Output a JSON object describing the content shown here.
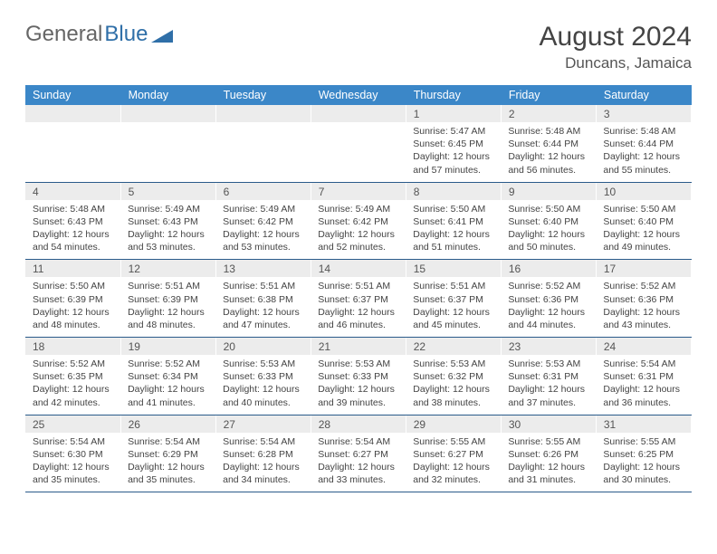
{
  "logo": {
    "text1": "General",
    "text2": "Blue"
  },
  "title": "August 2024",
  "location": "Duncans, Jamaica",
  "colors": {
    "header_bg": "#3b87c8",
    "daynum_bg": "#ececec",
    "sep_border": "#2a5b8a",
    "logo_blue": "#2f6fa8"
  },
  "day_headers": [
    "Sunday",
    "Monday",
    "Tuesday",
    "Wednesday",
    "Thursday",
    "Friday",
    "Saturday"
  ],
  "weeks": [
    [
      null,
      null,
      null,
      null,
      {
        "n": "1",
        "sr": "5:47 AM",
        "ss": "6:45 PM",
        "dl": "12 hours and 57 minutes."
      },
      {
        "n": "2",
        "sr": "5:48 AM",
        "ss": "6:44 PM",
        "dl": "12 hours and 56 minutes."
      },
      {
        "n": "3",
        "sr": "5:48 AM",
        "ss": "6:44 PM",
        "dl": "12 hours and 55 minutes."
      }
    ],
    [
      {
        "n": "4",
        "sr": "5:48 AM",
        "ss": "6:43 PM",
        "dl": "12 hours and 54 minutes."
      },
      {
        "n": "5",
        "sr": "5:49 AM",
        "ss": "6:43 PM",
        "dl": "12 hours and 53 minutes."
      },
      {
        "n": "6",
        "sr": "5:49 AM",
        "ss": "6:42 PM",
        "dl": "12 hours and 53 minutes."
      },
      {
        "n": "7",
        "sr": "5:49 AM",
        "ss": "6:42 PM",
        "dl": "12 hours and 52 minutes."
      },
      {
        "n": "8",
        "sr": "5:50 AM",
        "ss": "6:41 PM",
        "dl": "12 hours and 51 minutes."
      },
      {
        "n": "9",
        "sr": "5:50 AM",
        "ss": "6:40 PM",
        "dl": "12 hours and 50 minutes."
      },
      {
        "n": "10",
        "sr": "5:50 AM",
        "ss": "6:40 PM",
        "dl": "12 hours and 49 minutes."
      }
    ],
    [
      {
        "n": "11",
        "sr": "5:50 AM",
        "ss": "6:39 PM",
        "dl": "12 hours and 48 minutes."
      },
      {
        "n": "12",
        "sr": "5:51 AM",
        "ss": "6:39 PM",
        "dl": "12 hours and 48 minutes."
      },
      {
        "n": "13",
        "sr": "5:51 AM",
        "ss": "6:38 PM",
        "dl": "12 hours and 47 minutes."
      },
      {
        "n": "14",
        "sr": "5:51 AM",
        "ss": "6:37 PM",
        "dl": "12 hours and 46 minutes."
      },
      {
        "n": "15",
        "sr": "5:51 AM",
        "ss": "6:37 PM",
        "dl": "12 hours and 45 minutes."
      },
      {
        "n": "16",
        "sr": "5:52 AM",
        "ss": "6:36 PM",
        "dl": "12 hours and 44 minutes."
      },
      {
        "n": "17",
        "sr": "5:52 AM",
        "ss": "6:36 PM",
        "dl": "12 hours and 43 minutes."
      }
    ],
    [
      {
        "n": "18",
        "sr": "5:52 AM",
        "ss": "6:35 PM",
        "dl": "12 hours and 42 minutes."
      },
      {
        "n": "19",
        "sr": "5:52 AM",
        "ss": "6:34 PM",
        "dl": "12 hours and 41 minutes."
      },
      {
        "n": "20",
        "sr": "5:53 AM",
        "ss": "6:33 PM",
        "dl": "12 hours and 40 minutes."
      },
      {
        "n": "21",
        "sr": "5:53 AM",
        "ss": "6:33 PM",
        "dl": "12 hours and 39 minutes."
      },
      {
        "n": "22",
        "sr": "5:53 AM",
        "ss": "6:32 PM",
        "dl": "12 hours and 38 minutes."
      },
      {
        "n": "23",
        "sr": "5:53 AM",
        "ss": "6:31 PM",
        "dl": "12 hours and 37 minutes."
      },
      {
        "n": "24",
        "sr": "5:54 AM",
        "ss": "6:31 PM",
        "dl": "12 hours and 36 minutes."
      }
    ],
    [
      {
        "n": "25",
        "sr": "5:54 AM",
        "ss": "6:30 PM",
        "dl": "12 hours and 35 minutes."
      },
      {
        "n": "26",
        "sr": "5:54 AM",
        "ss": "6:29 PM",
        "dl": "12 hours and 35 minutes."
      },
      {
        "n": "27",
        "sr": "5:54 AM",
        "ss": "6:28 PM",
        "dl": "12 hours and 34 minutes."
      },
      {
        "n": "28",
        "sr": "5:54 AM",
        "ss": "6:27 PM",
        "dl": "12 hours and 33 minutes."
      },
      {
        "n": "29",
        "sr": "5:55 AM",
        "ss": "6:27 PM",
        "dl": "12 hours and 32 minutes."
      },
      {
        "n": "30",
        "sr": "5:55 AM",
        "ss": "6:26 PM",
        "dl": "12 hours and 31 minutes."
      },
      {
        "n": "31",
        "sr": "5:55 AM",
        "ss": "6:25 PM",
        "dl": "12 hours and 30 minutes."
      }
    ]
  ],
  "labels": {
    "sunrise": "Sunrise:",
    "sunset": "Sunset:",
    "daylight": "Daylight:"
  }
}
